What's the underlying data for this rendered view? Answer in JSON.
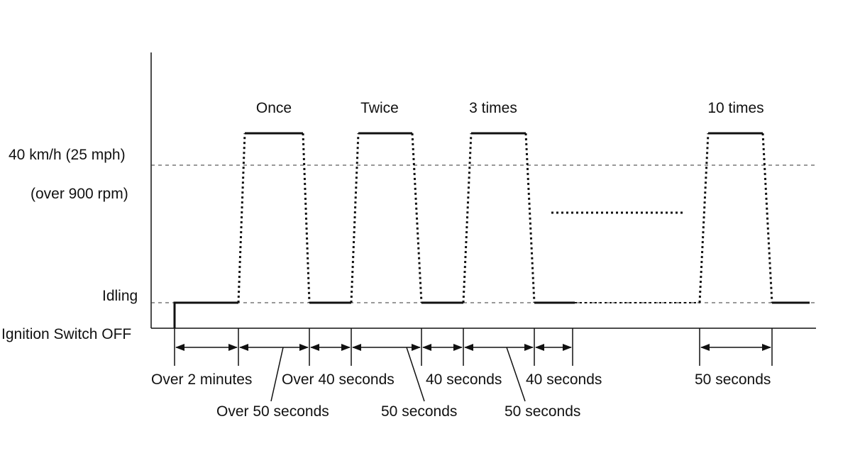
{
  "y_labels": {
    "speed": "40 km/h (25 mph)",
    "rpm": "(over 900 rpm)",
    "idling": "Idling",
    "ignition_off": "Ignition Switch OFF"
  },
  "cycle_labels": [
    "Once",
    "Twice",
    "3 times",
    "10 times"
  ],
  "durations": {
    "over_2_minutes": "Over 2 minutes",
    "over_50_seconds": "Over 50 seconds",
    "over_40_seconds": "Over 40 seconds",
    "fifty_seconds_a": "50 seconds",
    "forty_seconds_a": "40 seconds",
    "fifty_seconds_b": "50 seconds",
    "forty_seconds_b": "40 seconds",
    "fifty_seconds_c": "50 seconds"
  }
}
